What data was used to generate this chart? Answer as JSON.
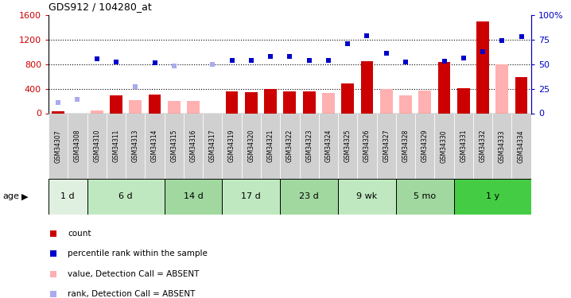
{
  "title": "GDS912 / 104280_at",
  "samples": [
    "GSM34307",
    "GSM34308",
    "GSM34310",
    "GSM34311",
    "GSM34313",
    "GSM34314",
    "GSM34315",
    "GSM34316",
    "GSM34317",
    "GSM34319",
    "GSM34320",
    "GSM34321",
    "GSM34322",
    "GSM34323",
    "GSM34324",
    "GSM34325",
    "GSM34326",
    "GSM34327",
    "GSM34328",
    "GSM34329",
    "GSM34330",
    "GSM34331",
    "GSM34332",
    "GSM34333",
    "GSM34334"
  ],
  "count_present": [
    30,
    null,
    null,
    290,
    null,
    300,
    null,
    null,
    null,
    350,
    340,
    390,
    360,
    360,
    null,
    480,
    850,
    null,
    null,
    null,
    830,
    410,
    1490,
    null,
    590
  ],
  "count_absent": [
    null,
    null,
    40,
    null,
    210,
    null,
    195,
    205,
    null,
    null,
    null,
    null,
    null,
    null,
    330,
    null,
    null,
    390,
    295,
    370,
    null,
    null,
    null,
    800,
    null
  ],
  "rank_present_pct": [
    null,
    null,
    55,
    52,
    null,
    51,
    null,
    null,
    50,
    54,
    54,
    58,
    58,
    54,
    54,
    71,
    79,
    61,
    52,
    null,
    53,
    56,
    63,
    74,
    78
  ],
  "rank_absent_pct": [
    11,
    14,
    null,
    null,
    27,
    null,
    48,
    null,
    50,
    null,
    null,
    null,
    null,
    null,
    null,
    null,
    null,
    null,
    null,
    null,
    null,
    null,
    null,
    null,
    null
  ],
  "age_groups": [
    {
      "label": "1 d",
      "start": 0,
      "end": 2,
      "color": "#e0f0e0"
    },
    {
      "label": "6 d",
      "start": 2,
      "end": 6,
      "color": "#c0e8c0"
    },
    {
      "label": "14 d",
      "start": 6,
      "end": 9,
      "color": "#a0d8a0"
    },
    {
      "label": "17 d",
      "start": 9,
      "end": 12,
      "color": "#c0e8c0"
    },
    {
      "label": "23 d",
      "start": 12,
      "end": 15,
      "color": "#a0d8a0"
    },
    {
      "label": "9 wk",
      "start": 15,
      "end": 18,
      "color": "#c0e8c0"
    },
    {
      "label": "5 mo",
      "start": 18,
      "end": 21,
      "color": "#a0d8a0"
    },
    {
      "label": "1 y",
      "start": 21,
      "end": 25,
      "color": "#44cc44"
    }
  ],
  "ylim_left": [
    0,
    1600
  ],
  "ylim_right": [
    0,
    100
  ],
  "yticks_left": [
    0,
    400,
    800,
    1200,
    1600
  ],
  "yticks_right": [
    0,
    25,
    50,
    75,
    100
  ],
  "bar_color": "#cc0000",
  "bar_absent_color": "#ffb0b0",
  "rank_color": "#0000cc",
  "rank_absent_color": "#aaaaee",
  "bg_color": "#ffffff",
  "label_bg_color": "#d0d0d0"
}
